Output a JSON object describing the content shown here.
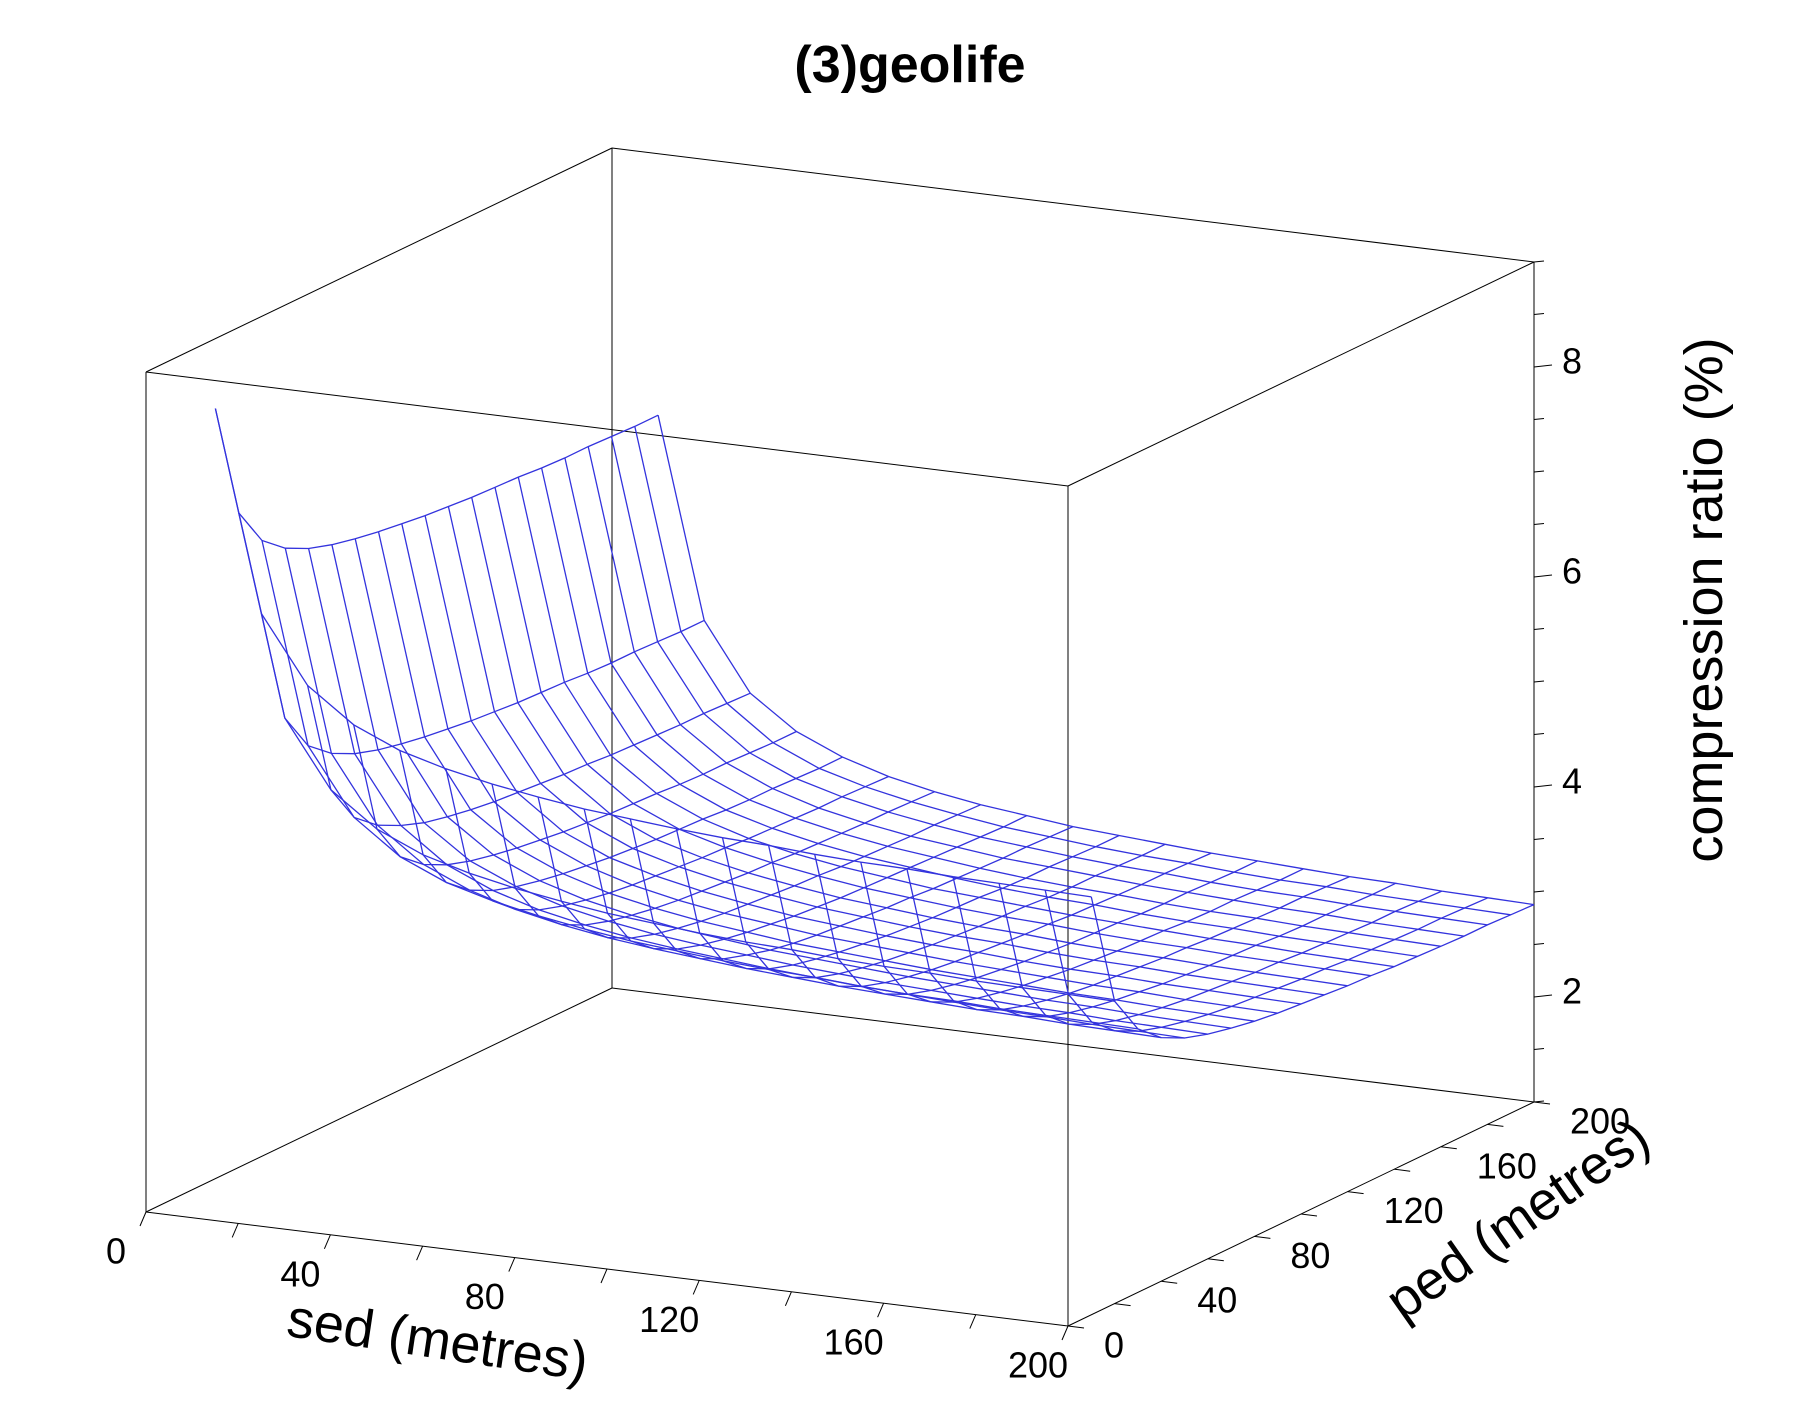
{
  "chart_data": {
    "type": "surface",
    "title": "(3)geolife",
    "xlabel": "sed (metres)",
    "ylabel": "ped (metres)",
    "zlabel": "compression ratio (%)",
    "xlim": [
      0,
      200
    ],
    "ylim": [
      0,
      200
    ],
    "zlim": [
      1,
      9
    ],
    "x_ticks": [
      0,
      40,
      80,
      120,
      160,
      200
    ],
    "y_ticks": [
      0,
      40,
      80,
      120,
      160,
      200
    ],
    "z_ticks": [
      2,
      4,
      6,
      8
    ],
    "x_tick_labels": [
      "0",
      "40",
      "80",
      "120",
      "160",
      "200"
    ],
    "y_tick_labels": [
      "0",
      "40",
      "80",
      "120",
      "160",
      "200"
    ],
    "z_tick_labels": [
      "2",
      "4",
      "6",
      "8"
    ],
    "grid": false,
    "surface": {
      "sed": [
        10,
        20,
        30,
        40,
        50,
        60,
        70,
        80,
        90,
        100,
        110,
        120,
        130,
        140,
        150,
        160,
        170,
        180,
        190,
        200
      ],
      "ped": [
        10,
        20,
        30,
        40,
        50,
        60,
        70,
        80,
        90,
        100,
        110,
        120,
        130,
        140,
        150,
        160,
        170,
        180,
        190,
        200
      ],
      "compression_ratio": [
        [
          8.6,
          7.5,
          7.13,
          6.95,
          6.84,
          6.77,
          6.72,
          6.68,
          6.65,
          6.62,
          6.6,
          6.58,
          6.57,
          6.56,
          6.54,
          6.53,
          6.53,
          6.52,
          6.51,
          6.51
        ],
        [
          6.7,
          5.6,
          5.23,
          5.05,
          4.94,
          4.87,
          4.82,
          4.78,
          4.75,
          4.72,
          4.7,
          4.68,
          4.67,
          4.66,
          4.64,
          4.63,
          4.63,
          4.62,
          4.61,
          4.61
        ],
        [
          6.07,
          4.97,
          4.6,
          4.42,
          4.31,
          4.23,
          4.18,
          4.14,
          4.11,
          4.09,
          4.07,
          4.05,
          4.04,
          4.02,
          4.01,
          4.0,
          3.99,
          3.99,
          3.98,
          3.97
        ],
        [
          5.75,
          4.65,
          4.28,
          4.1,
          3.99,
          3.92,
          3.87,
          3.83,
          3.8,
          3.77,
          3.75,
          3.73,
          3.72,
          3.71,
          3.69,
          3.68,
          3.68,
          3.67,
          3.66,
          3.66
        ],
        [
          5.56,
          4.46,
          4.09,
          3.91,
          3.8,
          3.73,
          3.68,
          3.64,
          3.61,
          3.58,
          3.56,
          3.54,
          3.53,
          3.52,
          3.5,
          3.49,
          3.49,
          3.48,
          3.47,
          3.47
        ],
        [
          5.44,
          4.34,
          3.97,
          3.78,
          3.67,
          3.6,
          3.55,
          3.51,
          3.48,
          3.46,
          3.44,
          3.42,
          3.41,
          3.39,
          3.38,
          3.37,
          3.36,
          3.36,
          3.35,
          3.34
        ],
        [
          5.35,
          4.25,
          3.88,
          3.69,
          3.58,
          3.51,
          3.46,
          3.42,
          3.39,
          3.37,
          3.35,
          3.33,
          3.32,
          3.3,
          3.29,
          3.28,
          3.27,
          3.27,
          3.26,
          3.25
        ],
        [
          5.28,
          4.18,
          3.81,
          3.62,
          3.51,
          3.44,
          3.39,
          3.35,
          3.32,
          3.3,
          3.28,
          3.26,
          3.25,
          3.23,
          3.22,
          3.21,
          3.2,
          3.2,
          3.19,
          3.18
        ],
        [
          5.22,
          4.12,
          3.75,
          3.57,
          3.46,
          3.39,
          3.34,
          3.3,
          3.27,
          3.24,
          3.22,
          3.2,
          3.19,
          3.18,
          3.17,
          3.16,
          3.15,
          3.14,
          3.13,
          3.13
        ],
        [
          5.18,
          4.08,
          3.71,
          3.53,
          3.42,
          3.35,
          3.29,
          3.25,
          3.22,
          3.2,
          3.18,
          3.16,
          3.15,
          3.13,
          3.12,
          3.11,
          3.1,
          3.1,
          3.09,
          3.08
        ],
        [
          5.14,
          4.04,
          3.67,
          3.49,
          3.38,
          3.31,
          3.26,
          3.22,
          3.19,
          3.16,
          3.14,
          3.12,
          3.11,
          3.1,
          3.08,
          3.07,
          3.07,
          3.06,
          3.05,
          3.05
        ],
        [
          5.11,
          4.01,
          3.64,
          3.46,
          3.35,
          3.28,
          3.23,
          3.19,
          3.16,
          3.13,
          3.11,
          3.09,
          3.08,
          3.07,
          3.05,
          3.04,
          3.04,
          3.03,
          3.02,
          3.02
        ],
        [
          5.09,
          3.99,
          3.62,
          3.43,
          3.32,
          3.25,
          3.2,
          3.16,
          3.13,
          3.11,
          3.09,
          3.07,
          3.06,
          3.04,
          3.03,
          3.02,
          3.01,
          3.01,
          3.0,
          2.99
        ],
        [
          5.06,
          3.96,
          3.59,
          3.41,
          3.3,
          3.23,
          3.18,
          3.14,
          3.11,
          3.08,
          3.06,
          3.04,
          3.03,
          3.02,
          3.0,
          2.99,
          2.99,
          2.98,
          2.97,
          2.97
        ],
        [
          5.04,
          3.94,
          3.57,
          3.39,
          3.28,
          3.21,
          3.16,
          3.12,
          3.09,
          3.06,
          3.04,
          3.02,
          3.01,
          3.0,
          2.98,
          2.97,
          2.97,
          2.96,
          2.95,
          2.95
        ],
        [
          5.03,
          3.93,
          3.56,
          3.37,
          3.26,
          3.19,
          3.14,
          3.1,
          3.07,
          3.05,
          3.03,
          3.01,
          3.0,
          2.98,
          2.97,
          2.96,
          2.95,
          2.95,
          2.94,
          2.93
        ],
        [
          5.01,
          3.91,
          3.54,
          3.36,
          3.25,
          3.18,
          3.13,
          3.09,
          3.06,
          3.03,
          3.01,
          2.99,
          2.98,
          2.97,
          2.95,
          2.94,
          2.94,
          2.93,
          2.92,
          2.92
        ],
        [
          5.0,
          3.9,
          3.53,
          3.34,
          3.23,
          3.16,
          3.11,
          3.07,
          3.04,
          3.02,
          3.0,
          2.98,
          2.97,
          2.95,
          2.94,
          2.93,
          2.92,
          2.92,
          2.91,
          2.9
        ],
        [
          4.99,
          3.89,
          3.52,
          3.33,
          3.22,
          3.15,
          3.1,
          3.06,
          3.03,
          3.01,
          2.99,
          2.97,
          2.96,
          2.94,
          2.93,
          2.92,
          2.91,
          2.91,
          2.9,
          2.89
        ],
        [
          4.98,
          3.88,
          3.51,
          3.32,
          3.21,
          3.14,
          3.09,
          3.05,
          3.02,
          3.0,
          2.98,
          2.96,
          2.95,
          2.93,
          2.92,
          2.91,
          2.9,
          2.9,
          2.89,
          2.88
        ]
      ]
    },
    "colors": {
      "mesh": "#3333dd",
      "box": "#000000"
    }
  }
}
